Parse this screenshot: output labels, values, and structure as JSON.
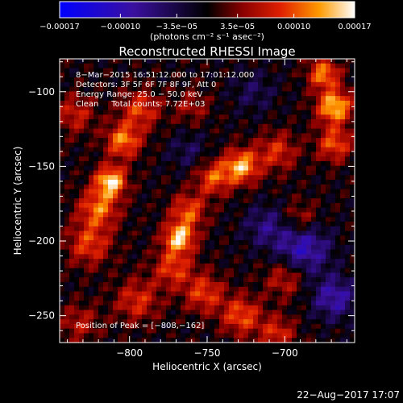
{
  "chart_data": {
    "type": "heatmap",
    "title": "Reconstructed RHESSI Image",
    "xlabel": "Heliocentric X (arcsec)",
    "ylabel": "Heliocentric Y (arcsec)",
    "xlim": [
      -845,
      -655
    ],
    "ylim": [
      -268,
      -78
    ],
    "xticks": [
      -800,
      -750,
      -700
    ],
    "xtick_labels": [
      "−800",
      "−750",
      "−700"
    ],
    "yticks": [
      -100,
      -150,
      -200,
      -250
    ],
    "ytick_labels": [
      "−100",
      "−150",
      "−200",
      "−250"
    ],
    "colorbar": {
      "min": -0.00017,
      "max": 0.00017,
      "ticks": [
        -0.00017,
        -0.0001,
        -3.5e-05,
        3.5e-05,
        0.0001,
        0.00017
      ],
      "tick_labels": [
        "−0.00017",
        "−0.00010",
        "−3.5e−05",
        "3.5e−05",
        "0.00010",
        "0.00017"
      ],
      "units": "(photons cm⁻² s⁻¹ asec⁻²)"
    },
    "annotations": [
      "8−Mar−2015 16:51:12.000 to 17:01:12.000",
      "Detectors: 3F 5F 6F 7F 8F 9F, Att 0",
      "Energy Range: 25.0 − 50.0 keV",
      "Clean     Total counts: 7.72E+03"
    ],
    "peak_label": "Position of Peak = [−808,−162]",
    "peak": [
      -808,
      -162
    ],
    "grid": false,
    "sources": [
      {
        "x": -812,
        "y": -160,
        "amp": 0.00016,
        "sigma": 7
      },
      {
        "x": -820,
        "y": -178,
        "amp": 0.00011,
        "sigma": 9
      },
      {
        "x": -826,
        "y": -202,
        "amp": 9e-05,
        "sigma": 10
      },
      {
        "x": -804,
        "y": -133,
        "amp": 0.00012,
        "sigma": 8
      },
      {
        "x": -793,
        "y": -112,
        "amp": 9e-05,
        "sigma": 9
      },
      {
        "x": -768,
        "y": -198,
        "amp": 0.00015,
        "sigma": 7
      },
      {
        "x": -762,
        "y": -180,
        "amp": 0.0001,
        "sigma": 8
      },
      {
        "x": -772,
        "y": -218,
        "amp": 9e-05,
        "sigma": 9
      },
      {
        "x": -728,
        "y": -150,
        "amp": 0.00014,
        "sigma": 8
      },
      {
        "x": -746,
        "y": -158,
        "amp": 0.0001,
        "sigma": 8
      },
      {
        "x": -705,
        "y": -140,
        "amp": 8e-05,
        "sigma": 9
      },
      {
        "x": -668,
        "y": -110,
        "amp": 0.00015,
        "sigma": 8
      },
      {
        "x": -675,
        "y": -88,
        "amp": 0.00012,
        "sigma": 7
      },
      {
        "x": -668,
        "y": -135,
        "amp": 0.0001,
        "sigma": 8
      },
      {
        "x": -752,
        "y": -235,
        "amp": 9e-05,
        "sigma": 9
      },
      {
        "x": -728,
        "y": -250,
        "amp": 0.0001,
        "sigma": 9
      },
      {
        "x": -705,
        "y": -262,
        "amp": 8e-05,
        "sigma": 8
      },
      {
        "x": -700,
        "y": -225,
        "amp": 7e-05,
        "sigma": 9
      },
      {
        "x": -795,
        "y": -240,
        "amp": 8e-05,
        "sigma": 10
      },
      {
        "x": -835,
        "y": -115,
        "amp": 7e-05,
        "sigma": 9
      },
      {
        "x": -832,
        "y": -255,
        "amp": 6e-05,
        "sigma": 9
      },
      {
        "x": -690,
        "y": -185,
        "amp": 6e-05,
        "sigma": 8
      },
      {
        "x": -760,
        "y": -110,
        "amp": 5e-05,
        "sigma": 8
      },
      {
        "x": -688,
        "y": -205,
        "amp": -0.0001,
        "sigma": 12
      },
      {
        "x": -668,
        "y": -238,
        "amp": -9e-05,
        "sigma": 10
      },
      {
        "x": -712,
        "y": -190,
        "amp": -6e-05,
        "sigma": 10
      },
      {
        "x": -762,
        "y": -140,
        "amp": -4e-05,
        "sigma": 9
      },
      {
        "x": -720,
        "y": -100,
        "amp": -4e-05,
        "sigma": 10
      }
    ]
  },
  "footer": {
    "timestamp": "22−Aug−2017 17:07"
  }
}
